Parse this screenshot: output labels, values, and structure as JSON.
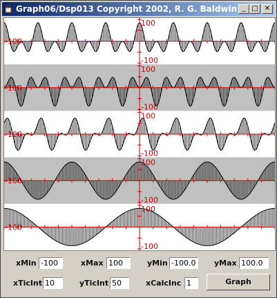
{
  "window": {
    "title": "Graph06/Dsp013 Copyright 2002, R. G. Baldwin",
    "minimize_glyph": "_",
    "maximize_glyph": "□",
    "close_glyph": "✕"
  },
  "plots": {
    "axis_color": "#cc0000",
    "trace_color": "#000000",
    "band_colors": [
      "#ffffff",
      "#c0c0c0",
      "#ffffff",
      "#c0c0c0",
      "#ffffff"
    ],
    "x_range": [
      -100,
      100
    ],
    "y_range": [
      -100,
      100
    ],
    "x_tick_interval": 10,
    "y_tick_interval": 50,
    "graphs": [
      {
        "label_top": "100",
        "label_left": "-100",
        "label_bottom": "-100"
      },
      {
        "label_top": "100",
        "label_left": "-100",
        "label_bottom": "-100"
      },
      {
        "label_top": "100",
        "label_left": "-100",
        "label_bottom": "-100"
      },
      {
        "label_top": "100",
        "label_left": "-100",
        "label_bottom": "-100"
      },
      {
        "label_top": "100",
        "label_left": "-100",
        "label_bottom": "-100"
      }
    ]
  },
  "controls": {
    "xmin_label": "xMin",
    "xmin_value": "-100",
    "xmax_label": "xMax",
    "xmax_value": "100",
    "ymin_label": "yMin",
    "ymin_value": "-100.0",
    "ymax_label": "yMax",
    "ymax_value": "100.0",
    "xticint_label": "xTicInt",
    "xticint_value": "10",
    "yticint_label": "yTicInt",
    "yticint_value": "50",
    "xcalcinc_label": "xCalcInc",
    "xcalcinc_value": "1",
    "graph_button": "Graph"
  }
}
